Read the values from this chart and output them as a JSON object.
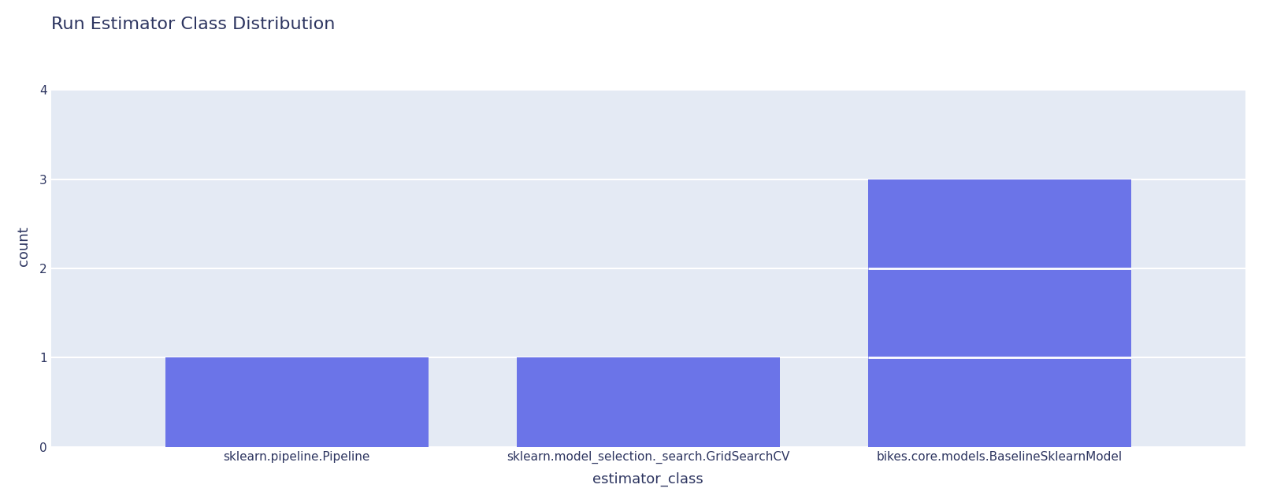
{
  "title": "Run Estimator Class Distribution",
  "categories": [
    "sklearn.pipeline.Pipeline",
    "sklearn.model_selection._search.GridSearchCV",
    "bikes.core.models.BaselineSklearnModel"
  ],
  "values": [
    1,
    1,
    3
  ],
  "bar_color": "#6b74e8",
  "xlabel": "estimator_class",
  "ylabel": "count",
  "ylim": [
    0,
    4.5
  ],
  "yticks": [
    0,
    1,
    2,
    3,
    4
  ],
  "plot_bg_color": "#e4eaf4",
  "fig_bg_color": "#ffffff",
  "title_color": "#2d3560",
  "label_color": "#2d3560",
  "tick_color": "#2d3560",
  "grid_color": "#ffffff",
  "title_fontsize": 16,
  "label_fontsize": 13,
  "tick_fontsize": 11,
  "bar_width": 0.75
}
